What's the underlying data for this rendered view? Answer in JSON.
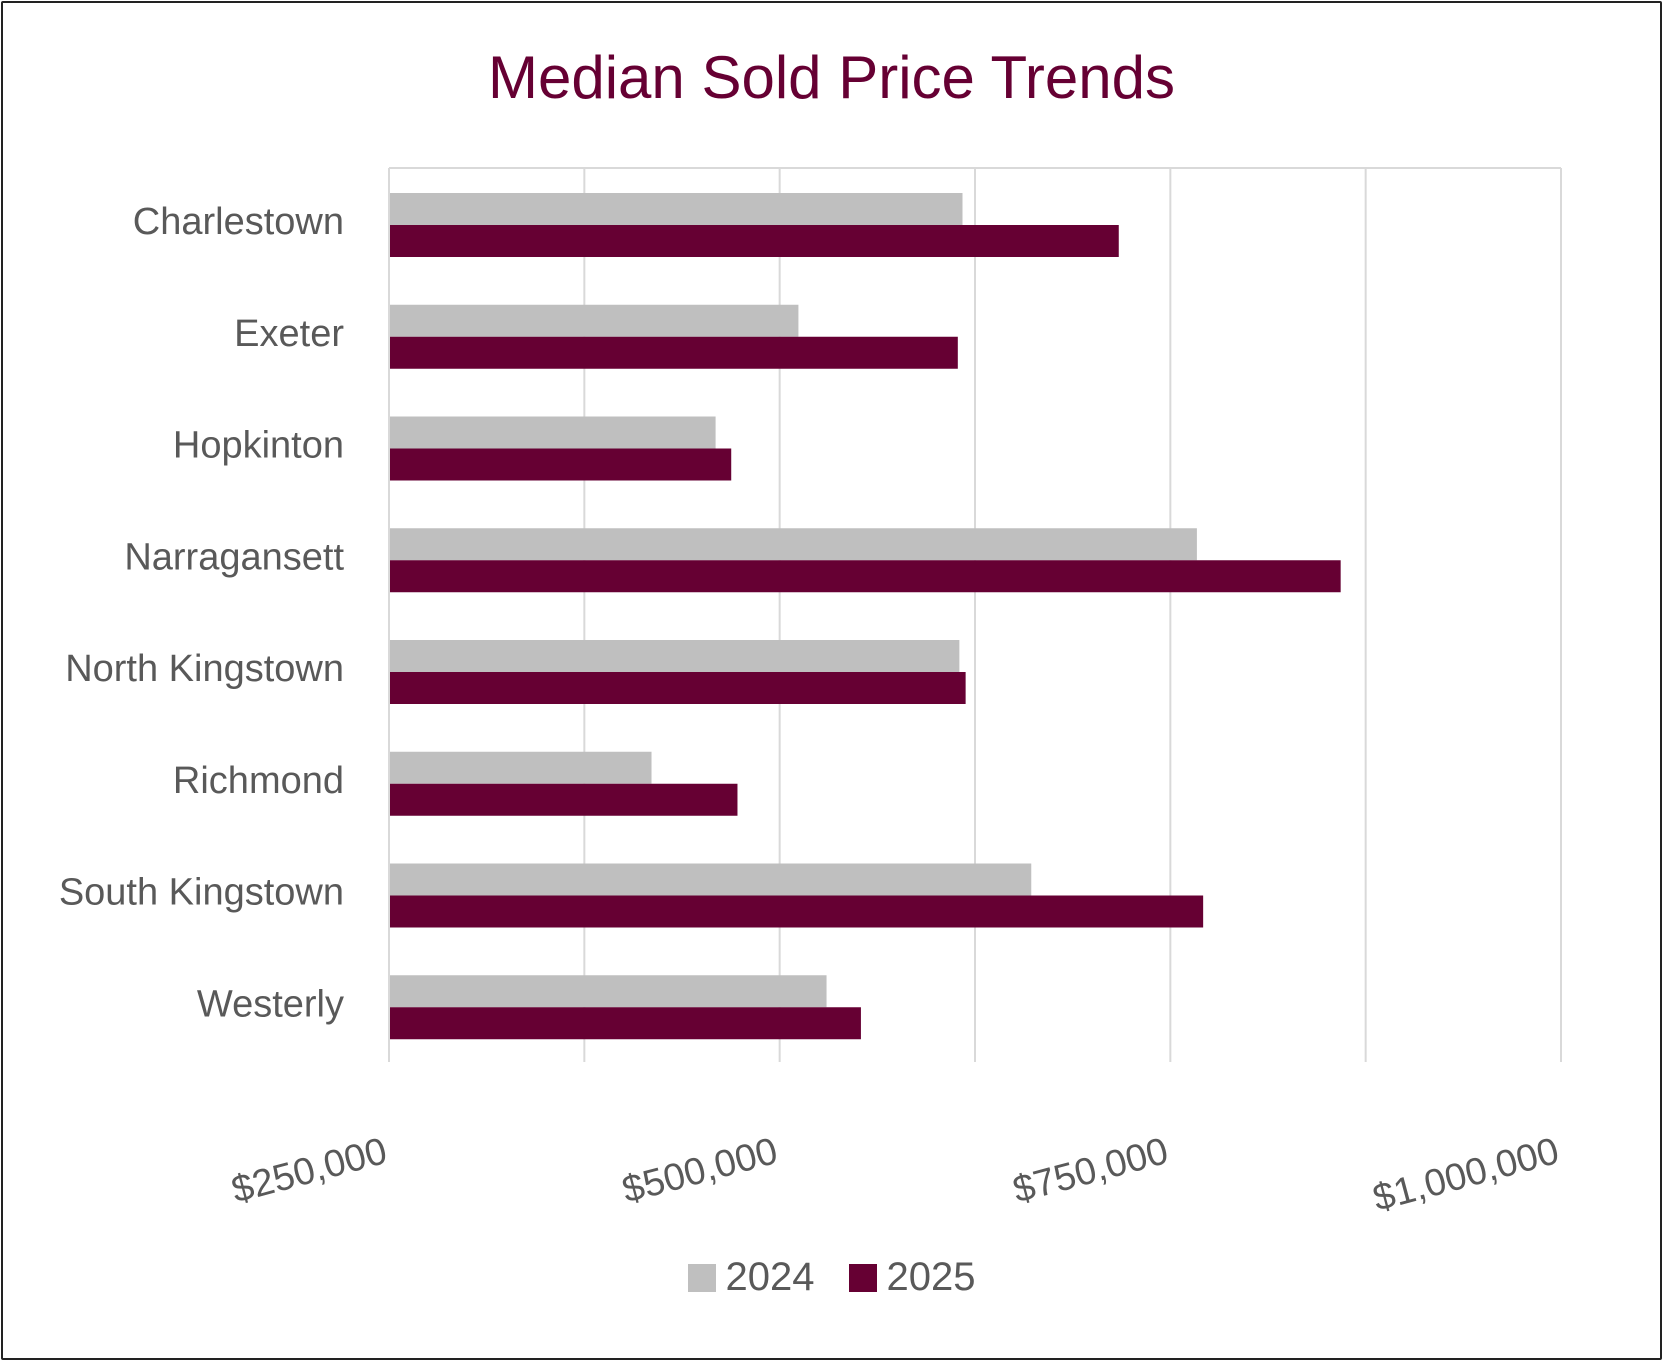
{
  "chart_data": {
    "type": "bar",
    "orientation": "horizontal",
    "title": "Median Sold Price Trends",
    "categories": [
      "Charlestown",
      "Exeter",
      "Hopkinton",
      "Narragansett",
      "North Kingstown",
      "Richmond",
      "South Kingstown",
      "Westerly"
    ],
    "series": [
      {
        "name": "2024",
        "color": "#bfbfbf",
        "values": [
          617000,
          512000,
          459000,
          767000,
          615000,
          418000,
          661000,
          530000
        ]
      },
      {
        "name": "2025",
        "color": "#660033",
        "values": [
          717000,
          614000,
          469000,
          859000,
          619000,
          473000,
          771000,
          552000
        ]
      }
    ],
    "xlim": [
      250000,
      1000000
    ],
    "x_ticks": [
      250000,
      375000,
      500000,
      625000,
      750000,
      875000,
      1000000
    ],
    "x_tick_labels": [
      "$250,000",
      "$500,000",
      "$750,000",
      "$1,000,000"
    ],
    "xlabel": "",
    "ylabel": "",
    "grid": true,
    "legend_position": "bottom"
  }
}
